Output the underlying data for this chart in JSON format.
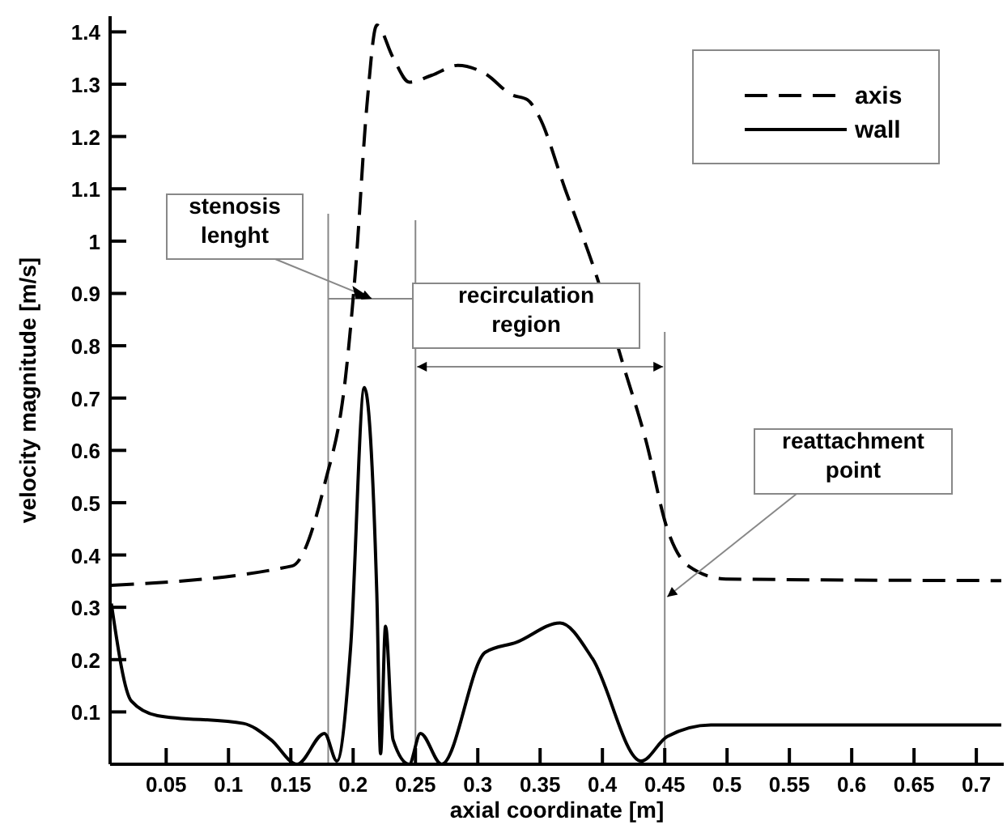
{
  "chart_data": {
    "type": "line",
    "xlabel": "axial coordinate [m]",
    "ylabel": "velocity magnitude [m/s]",
    "xlim": [
      0.005,
      0.722
    ],
    "ylim": [
      0,
      1.43
    ],
    "xticks": [
      0.05,
      0.1,
      0.15,
      0.2,
      0.25,
      0.3,
      0.35,
      0.4,
      0.45,
      0.5,
      0.55,
      0.6,
      0.65,
      0.7
    ],
    "yticks": [
      0.1,
      0.2,
      0.3,
      0.4,
      0.5,
      0.6,
      0.7,
      0.8,
      0.9,
      1,
      1.1,
      1.2,
      1.3,
      1.4
    ],
    "grid": false,
    "legend": "top right",
    "series": [
      {
        "name": "axis",
        "color": "#000000",
        "line_style": "dashed",
        "x": [
          0.006,
          0.151,
          0.177,
          0.194,
          0.202,
          0.211,
          0.219,
          0.232,
          0.245,
          0.263,
          0.284,
          0.306,
          0.327,
          0.34,
          0.349,
          0.37,
          0.396,
          0.417,
          0.435,
          0.452,
          0.469,
          0.499,
          0.72
        ],
        "values": [
          0.342,
          0.379,
          0.534,
          0.742,
          0.948,
          1.258,
          1.413,
          1.351,
          1.304,
          1.317,
          1.336,
          1.32,
          1.28,
          1.27,
          1.239,
          1.1,
          0.928,
          0.761,
          0.618,
          0.45,
          0.379,
          0.354,
          0.351
        ]
      },
      {
        "name": "wall",
        "color": "#000000",
        "line_style": "solid",
        "x": [
          0.006,
          0.022,
          0.043,
          0.112,
          0.134,
          0.155,
          0.177,
          0.187,
          0.198,
          0.209,
          0.219,
          0.222,
          0.226,
          0.232,
          0.245,
          0.254,
          0.271,
          0.306,
          0.331,
          0.366,
          0.392,
          0.431,
          0.452,
          0.487,
          0.72
        ],
        "values": [
          0.307,
          0.121,
          0.093,
          0.078,
          0.047,
          0,
          0.059,
          0.006,
          0.224,
          0.72,
          0.326,
          0.02,
          0.264,
          0.047,
          0,
          0.059,
          0,
          0.214,
          0.233,
          0.27,
          0.202,
          0.006,
          0.053,
          0.075,
          0.075
        ]
      }
    ],
    "ref_lines": [
      {
        "axis": "x",
        "value": 0.18,
        "color": "#888888"
      },
      {
        "axis": "x",
        "value": 0.25,
        "color": "#888888"
      },
      {
        "axis": "x",
        "value": 0.45,
        "color": "#888888"
      },
      {
        "axis": "y",
        "value": 0.89,
        "color": "#888888"
      }
    ],
    "annotations": [
      {
        "text": "stenosis lenght",
        "x": 0.215,
        "y": 0.89
      },
      "recirculation region",
      {
        "text": "reattachment point",
        "x": 0.452,
        "y": 0.32
      }
    ]
  }
}
